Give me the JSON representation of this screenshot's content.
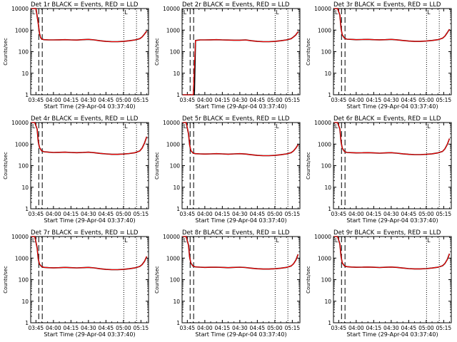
{
  "colors": {
    "events": "#000000",
    "lld": "#ff0000",
    "background": "#ffffff"
  },
  "chart_data": {
    "type": "line",
    "grid": false,
    "legend": "none",
    "xticks": [
      "03:45",
      "04:00",
      "04:15",
      "04:30",
      "04:45",
      "05:00",
      "05:15"
    ],
    "xtick_minutes": [
      225,
      240,
      255,
      270,
      285,
      300,
      315
    ],
    "xlim_minutes": [
      220.5,
      321.5
    ],
    "yscale": "log",
    "ylim": [
      1,
      10000
    ],
    "yticks": [
      "1",
      "10",
      "100",
      "1000",
      "10000"
    ],
    "yticks_values": [
      1,
      10,
      100,
      1000,
      10000
    ],
    "ylabel": "Counts/sec",
    "xlabel": "Start Time (29-Apr-04 03:37:40)",
    "marker_label": "L",
    "panels": [
      {
        "title": "Det 1r BLACK = Events, RED = LLD",
        "dashed_minutes": [
          227.4,
          230.4
        ],
        "dotted_minutes": [
          300.3,
          311.2
        ],
        "x": [
          221,
          225,
          227,
          228,
          229,
          230,
          232,
          236,
          240,
          245,
          250,
          255,
          260,
          265,
          270,
          275,
          280,
          285,
          290,
          295,
          300,
          305,
          310,
          314,
          316,
          318,
          320
        ],
        "series": [
          {
            "name": "BLACK = Events",
            "values": [
              10000,
              10000,
              2000,
              700,
              450,
              380,
              360,
              350,
              350,
              355,
              360,
              350,
              345,
              360,
              370,
              350,
              320,
              300,
              290,
              290,
              300,
              320,
              350,
              400,
              480,
              650,
              900
            ]
          },
          {
            "name": "RED = LLD",
            "values": [
              10000,
              10000,
              2000,
              700,
              450,
              380,
              360,
              350,
              350,
              355,
              360,
              350,
              345,
              360,
              370,
              350,
              320,
              300,
              290,
              290,
              300,
              320,
              350,
              400,
              480,
              650,
              900
            ]
          }
        ]
      },
      {
        "title": "Det 2r BLACK = Events, RED = LLD",
        "dashed_minutes": [
          227.4,
          230.4
        ],
        "dotted_minutes": [
          300.3,
          311.2
        ],
        "x": [
          221,
          224,
          227,
          229,
          230,
          231,
          232,
          236,
          240,
          245,
          250,
          255,
          260,
          265,
          270,
          275,
          280,
          285,
          290,
          295,
          300,
          305,
          310,
          314,
          316,
          318,
          320
        ],
        "series": [
          {
            "name": "BLACK = Events",
            "values": [
              1,
              1,
              1,
              1,
              1,
              1,
              330,
              350,
              350,
              355,
              360,
              350,
              345,
              340,
              340,
              350,
              320,
              300,
              290,
              290,
              300,
              320,
              350,
              400,
              480,
              600,
              850
            ]
          },
          {
            "name": "RED = LLD",
            "values": [
              1,
              1,
              1,
              1,
              1,
              20,
              330,
              350,
              350,
              355,
              360,
              350,
              345,
              340,
              340,
              350,
              320,
              300,
              290,
              290,
              300,
              320,
              350,
              400,
              480,
              600,
              850
            ]
          }
        ]
      },
      {
        "title": "Det 3r BLACK = Events, RED = LLD",
        "dashed_minutes": [
          227.4,
          230.4
        ],
        "dotted_minutes": [
          300.3,
          311.2
        ],
        "x": [
          221,
          224,
          226,
          227,
          228,
          230,
          232,
          236,
          240,
          245,
          250,
          255,
          260,
          265,
          270,
          275,
          280,
          285,
          290,
          295,
          300,
          305,
          310,
          314,
          316,
          318,
          320
        ],
        "series": [
          {
            "name": "BLACK = Events",
            "values": [
              10000,
              10000,
              5000,
              1200,
              600,
              420,
              380,
              370,
              360,
              365,
              370,
              360,
              355,
              360,
              370,
              355,
              330,
              310,
              300,
              300,
              310,
              330,
              360,
              420,
              520,
              750,
              1100
            ]
          },
          {
            "name": "RED = LLD",
            "values": [
              10000,
              10000,
              5000,
              1200,
              600,
              420,
              380,
              370,
              360,
              365,
              370,
              360,
              355,
              360,
              370,
              355,
              330,
              310,
              300,
              300,
              310,
              330,
              360,
              420,
              520,
              750,
              1100
            ]
          }
        ]
      },
      {
        "title": "Det 4r BLACK = Events, RED = LLD",
        "dashed_minutes": [
          227.4,
          230.4
        ],
        "dotted_minutes": [
          300.3,
          311.2
        ],
        "x": [
          221,
          224,
          226,
          227,
          228,
          230,
          232,
          236,
          240,
          245,
          250,
          255,
          260,
          265,
          270,
          275,
          280,
          285,
          290,
          295,
          300,
          305,
          310,
          314,
          316,
          318,
          320
        ],
        "series": [
          {
            "name": "BLACK = Events",
            "values": [
              10000,
              10000,
              5000,
              1300,
              700,
              480,
              440,
              420,
              410,
              415,
              420,
              410,
              400,
              410,
              420,
              400,
              370,
              350,
              335,
              335,
              345,
              365,
              400,
              480,
              650,
              1100,
              2200
            ]
          },
          {
            "name": "RED = LLD",
            "values": [
              10000,
              10000,
              5000,
              1300,
              700,
              480,
              440,
              420,
              410,
              415,
              420,
              410,
              400,
              410,
              420,
              400,
              370,
              350,
              335,
              335,
              345,
              365,
              400,
              480,
              650,
              1100,
              2200
            ]
          }
        ]
      },
      {
        "title": "Det 5r BLACK = Events, RED = LLD",
        "dashed_minutes": [
          227.4,
          230.4
        ],
        "dotted_minutes": [
          300.3,
          311.2
        ],
        "x": [
          221,
          224,
          226,
          227,
          228,
          230,
          232,
          236,
          240,
          245,
          250,
          255,
          260,
          265,
          270,
          275,
          280,
          285,
          290,
          295,
          300,
          305,
          310,
          314,
          316,
          318,
          320
        ],
        "series": [
          {
            "name": "BLACK = Events",
            "values": [
              10000,
              10000,
              3000,
              900,
              500,
              380,
              360,
              350,
              345,
              350,
              360,
              350,
              340,
              350,
              360,
              345,
              320,
              300,
              290,
              290,
              300,
              320,
              350,
              400,
              480,
              650,
              950
            ]
          },
          {
            "name": "RED = LLD",
            "values": [
              10000,
              10000,
              3000,
              900,
              500,
              380,
              360,
              350,
              345,
              350,
              360,
              350,
              340,
              350,
              360,
              345,
              320,
              300,
              290,
              290,
              300,
              320,
              350,
              400,
              480,
              650,
              950
            ]
          }
        ]
      },
      {
        "title": "Det 6r BLACK = Events, RED = LLD",
        "dashed_minutes": [
          227.4,
          230.4
        ],
        "dotted_minutes": [
          300.3,
          311.2
        ],
        "x": [
          221,
          224,
          226,
          227,
          228,
          230,
          232,
          236,
          240,
          245,
          250,
          255,
          260,
          265,
          270,
          275,
          280,
          285,
          290,
          295,
          300,
          305,
          310,
          314,
          316,
          318,
          320
        ],
        "series": [
          {
            "name": "BLACK = Events",
            "values": [
              10000,
              10000,
              5000,
              1300,
              650,
              450,
              410,
              400,
              390,
              395,
              400,
              390,
              380,
              390,
              400,
              380,
              355,
              335,
              325,
              325,
              335,
              355,
              390,
              460,
              600,
              950,
              1800
            ]
          },
          {
            "name": "RED = LLD",
            "values": [
              10000,
              10000,
              5000,
              1300,
              650,
              450,
              410,
              400,
              390,
              395,
              400,
              390,
              380,
              390,
              400,
              380,
              355,
              335,
              325,
              325,
              335,
              355,
              390,
              460,
              600,
              950,
              1800
            ]
          }
        ]
      },
      {
        "title": "Det 7r BLACK = Events, RED = LLD",
        "dashed_minutes": [
          227.4,
          230.4
        ],
        "dotted_minutes": [
          300.3,
          311.2
        ],
        "x": [
          221,
          224,
          226,
          227,
          228,
          230,
          232,
          236,
          240,
          245,
          250,
          255,
          260,
          265,
          270,
          275,
          280,
          285,
          290,
          295,
          300,
          305,
          310,
          314,
          316,
          318,
          320
        ],
        "series": [
          {
            "name": "BLACK = Events",
            "values": [
              10000,
              10000,
              3000,
              900,
              520,
              400,
              370,
              360,
              355,
              360,
              370,
              360,
              350,
              360,
              370,
              350,
              320,
              300,
              290,
              290,
              300,
              320,
              355,
              410,
              500,
              700,
              1200
            ]
          },
          {
            "name": "RED = LLD",
            "values": [
              10000,
              10000,
              3000,
              900,
              520,
              400,
              370,
              360,
              355,
              360,
              370,
              360,
              350,
              360,
              370,
              350,
              320,
              300,
              290,
              290,
              300,
              320,
              355,
              410,
              500,
              700,
              1200
            ]
          }
        ]
      },
      {
        "title": "Det 8r BLACK = Events, RED = LLD",
        "dashed_minutes": [
          227.4,
          230.4
        ],
        "dotted_minutes": [
          300.3,
          311.2
        ],
        "x": [
          221,
          224,
          226,
          227,
          228,
          230,
          232,
          236,
          240,
          245,
          250,
          255,
          260,
          265,
          270,
          275,
          280,
          285,
          290,
          295,
          300,
          305,
          310,
          314,
          316,
          318,
          320
        ],
        "series": [
          {
            "name": "BLACK = Events",
            "values": [
              10000,
              10000,
              4000,
              1100,
              580,
              420,
              390,
              380,
              370,
              375,
              380,
              370,
              360,
              370,
              380,
              365,
              340,
              320,
              310,
              310,
              320,
              340,
              370,
              430,
              540,
              800,
              1500
            ]
          },
          {
            "name": "RED = LLD",
            "values": [
              10000,
              10000,
              4000,
              1100,
              580,
              420,
              390,
              380,
              370,
              375,
              380,
              370,
              360,
              370,
              380,
              365,
              340,
              320,
              310,
              310,
              320,
              340,
              370,
              430,
              540,
              800,
              1500
            ]
          }
        ]
      },
      {
        "title": "Det 9r BLACK = Events, RED = LLD",
        "dashed_minutes": [
          227.4,
          230.4
        ],
        "dotted_minutes": [
          300.3,
          311.2
        ],
        "x": [
          221,
          224,
          226,
          227,
          228,
          230,
          232,
          236,
          240,
          245,
          250,
          255,
          260,
          265,
          270,
          275,
          280,
          285,
          290,
          295,
          300,
          305,
          310,
          314,
          316,
          318,
          320
        ],
        "series": [
          {
            "name": "BLACK = Events",
            "values": [
              10000,
              10000,
              4500,
              1200,
              600,
              430,
              400,
              385,
              375,
              380,
              385,
              375,
              365,
              375,
              385,
              370,
              345,
              325,
              315,
              315,
              325,
              345,
              375,
              440,
              560,
              850,
              1600
            ]
          },
          {
            "name": "RED = LLD",
            "values": [
              10000,
              10000,
              4500,
              1200,
              600,
              430,
              400,
              385,
              375,
              380,
              385,
              375,
              365,
              375,
              385,
              370,
              345,
              325,
              315,
              315,
              325,
              345,
              375,
              440,
              560,
              850,
              1600
            ]
          }
        ]
      }
    ]
  }
}
